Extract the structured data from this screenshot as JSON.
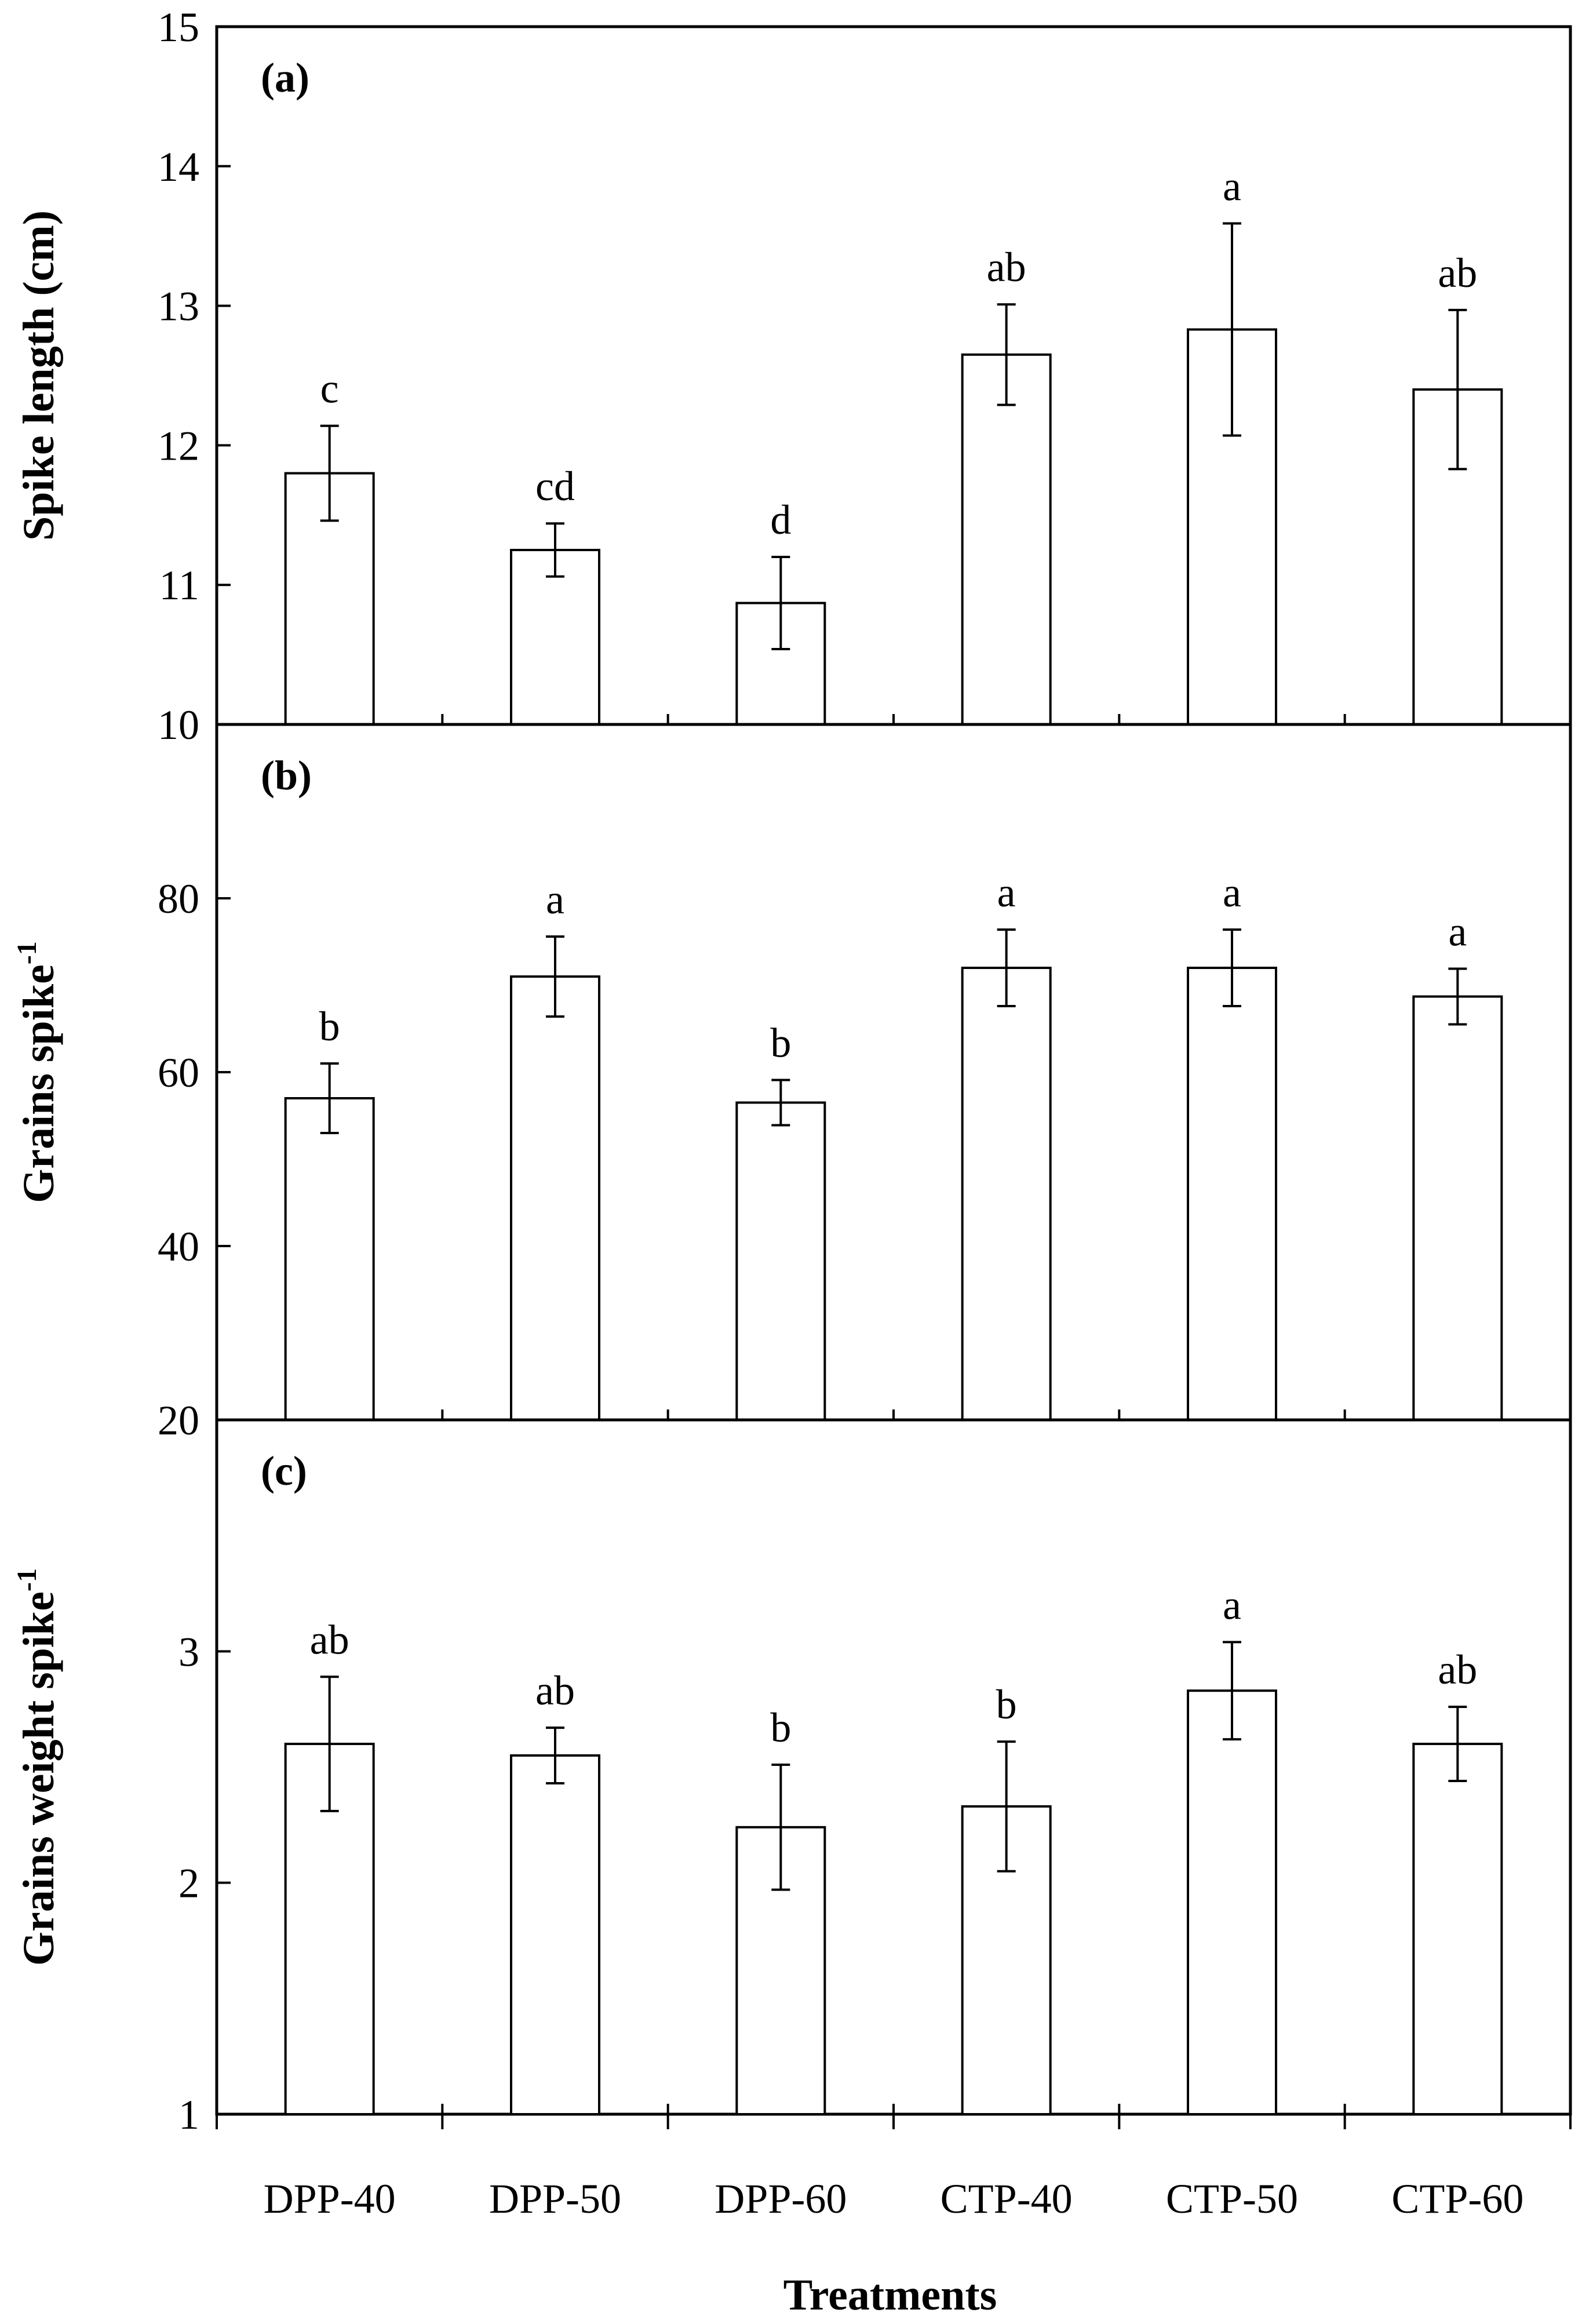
{
  "figure": {
    "xlabel": "Treatments",
    "categories": [
      "DPP-40",
      "DPP-50",
      "DPP-60",
      "CTP-40",
      "CTP-50",
      "CTP-60"
    ],
    "colors": {
      "bar_fill": "#ffffff",
      "stroke": "#000000",
      "background": "#ffffff"
    }
  },
  "chart_data": [
    {
      "type": "bar",
      "panel": "(a)",
      "ylabel": "Spike length (cm)",
      "ylabel_main": "Spike length (cm)",
      "ylabel_sup": "",
      "ylim": [
        10,
        15
      ],
      "yticks": [
        10,
        11,
        12,
        13,
        14,
        15
      ],
      "categories": [
        "DPP-40",
        "DPP-50",
        "DPP-60",
        "CTP-40",
        "CTP-50",
        "CTP-60"
      ],
      "values": [
        11.8,
        11.25,
        10.87,
        12.65,
        12.83,
        12.4
      ],
      "errors": [
        0.34,
        0.19,
        0.33,
        0.36,
        0.76,
        0.57
      ],
      "significance": [
        "c",
        "cd",
        "d",
        "ab",
        "a",
        "ab"
      ],
      "grid": false
    },
    {
      "type": "bar",
      "panel": "(b)",
      "ylabel": "Grains spike-1",
      "ylabel_main": "Grains spike",
      "ylabel_sup": "-1",
      "ylim": [
        20,
        100
      ],
      "yticks": [
        20,
        40,
        60,
        80
      ],
      "categories": [
        "DPP-40",
        "DPP-50",
        "DPP-60",
        "CTP-40",
        "CTP-50",
        "CTP-60"
      ],
      "values": [
        57,
        71,
        56.5,
        72,
        72,
        68.7
      ],
      "errors": [
        4.0,
        4.6,
        2.6,
        4.4,
        4.4,
        3.2
      ],
      "significance": [
        "b",
        "a",
        "b",
        "a",
        "a",
        "a"
      ],
      "grid": false
    },
    {
      "type": "bar",
      "panel": "(c)",
      "ylabel": "Grains weight spike-1",
      "ylabel_main": "Grains weight spike",
      "ylabel_sup": "-1",
      "ylim": [
        1,
        4
      ],
      "yticks": [
        1,
        2,
        3
      ],
      "categories": [
        "DPP-40",
        "DPP-50",
        "DPP-60",
        "CTP-40",
        "CTP-50",
        "CTP-60"
      ],
      "values": [
        2.6,
        2.55,
        2.24,
        2.33,
        2.83,
        2.6
      ],
      "errors": [
        0.29,
        0.12,
        0.27,
        0.28,
        0.21,
        0.16
      ],
      "significance": [
        "ab",
        "ab",
        "b",
        "b",
        "a",
        "ab"
      ],
      "grid": false
    }
  ]
}
